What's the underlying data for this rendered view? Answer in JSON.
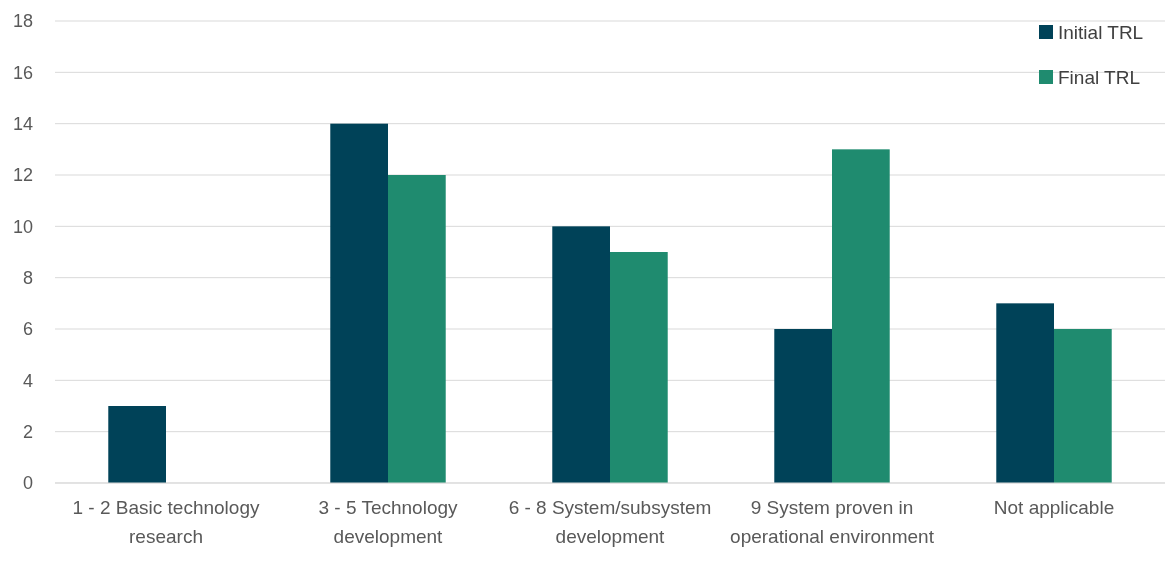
{
  "chart_data": {
    "type": "bar",
    "categories": [
      "1 - 2 Basic technology research",
      "3 - 5 Technology development",
      "6 - 8 System/subsystem development",
      "9 System proven in operational environment",
      "Not applicable"
    ],
    "series": [
      {
        "name": "Initial TRL",
        "color": "#004258",
        "values": [
          3,
          14,
          10,
          6,
          7
        ]
      },
      {
        "name": "Final TRL",
        "color": "#1f8b6f",
        "values": [
          0,
          12,
          9,
          13,
          6
        ]
      }
    ],
    "ylim": [
      0,
      18
    ],
    "yticks": [
      0,
      2,
      4,
      6,
      8,
      10,
      12,
      14,
      16,
      18
    ],
    "grid": "y",
    "legend": "top right"
  }
}
